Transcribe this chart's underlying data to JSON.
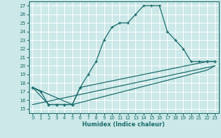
{
  "xlabel": "Humidex (Indice chaleur)",
  "bg_color": "#cce8e8",
  "grid_color": "#ffffff",
  "line_color": "#1a6b6b",
  "xlim": [
    -0.5,
    23.5
  ],
  "ylim": [
    14.5,
    27.5
  ],
  "xticks": [
    0,
    1,
    2,
    3,
    4,
    5,
    6,
    7,
    8,
    9,
    10,
    11,
    12,
    13,
    14,
    15,
    16,
    17,
    18,
    19,
    20,
    21,
    22,
    23
  ],
  "yticks": [
    15,
    16,
    17,
    18,
    19,
    20,
    21,
    22,
    23,
    24,
    25,
    26,
    27
  ],
  "line1_x": [
    0,
    1,
    2,
    3,
    4,
    5,
    6,
    7,
    8,
    9,
    10,
    11,
    12,
    13,
    14,
    15,
    16,
    17,
    18,
    19,
    20,
    21,
    22,
    23
  ],
  "line1_y": [
    17.5,
    17.0,
    15.5,
    15.5,
    15.5,
    15.5,
    17.5,
    19.0,
    20.5,
    23.0,
    24.5,
    25.0,
    25.0,
    26.0,
    27.0,
    27.0,
    27.0,
    24.0,
    23.0,
    22.0,
    20.5,
    20.5,
    20.5,
    20.5
  ],
  "line2_x": [
    0,
    2,
    3,
    4,
    5,
    6,
    22,
    23
  ],
  "line2_y": [
    17.5,
    15.5,
    15.5,
    15.5,
    15.5,
    17.5,
    20.5,
    20.5
  ],
  "line3_x": [
    0,
    5,
    22,
    23
  ],
  "line3_y": [
    17.5,
    15.5,
    19.5,
    20.0
  ],
  "line4_x": [
    0,
    23
  ],
  "line4_y": [
    15.5,
    20.0
  ]
}
